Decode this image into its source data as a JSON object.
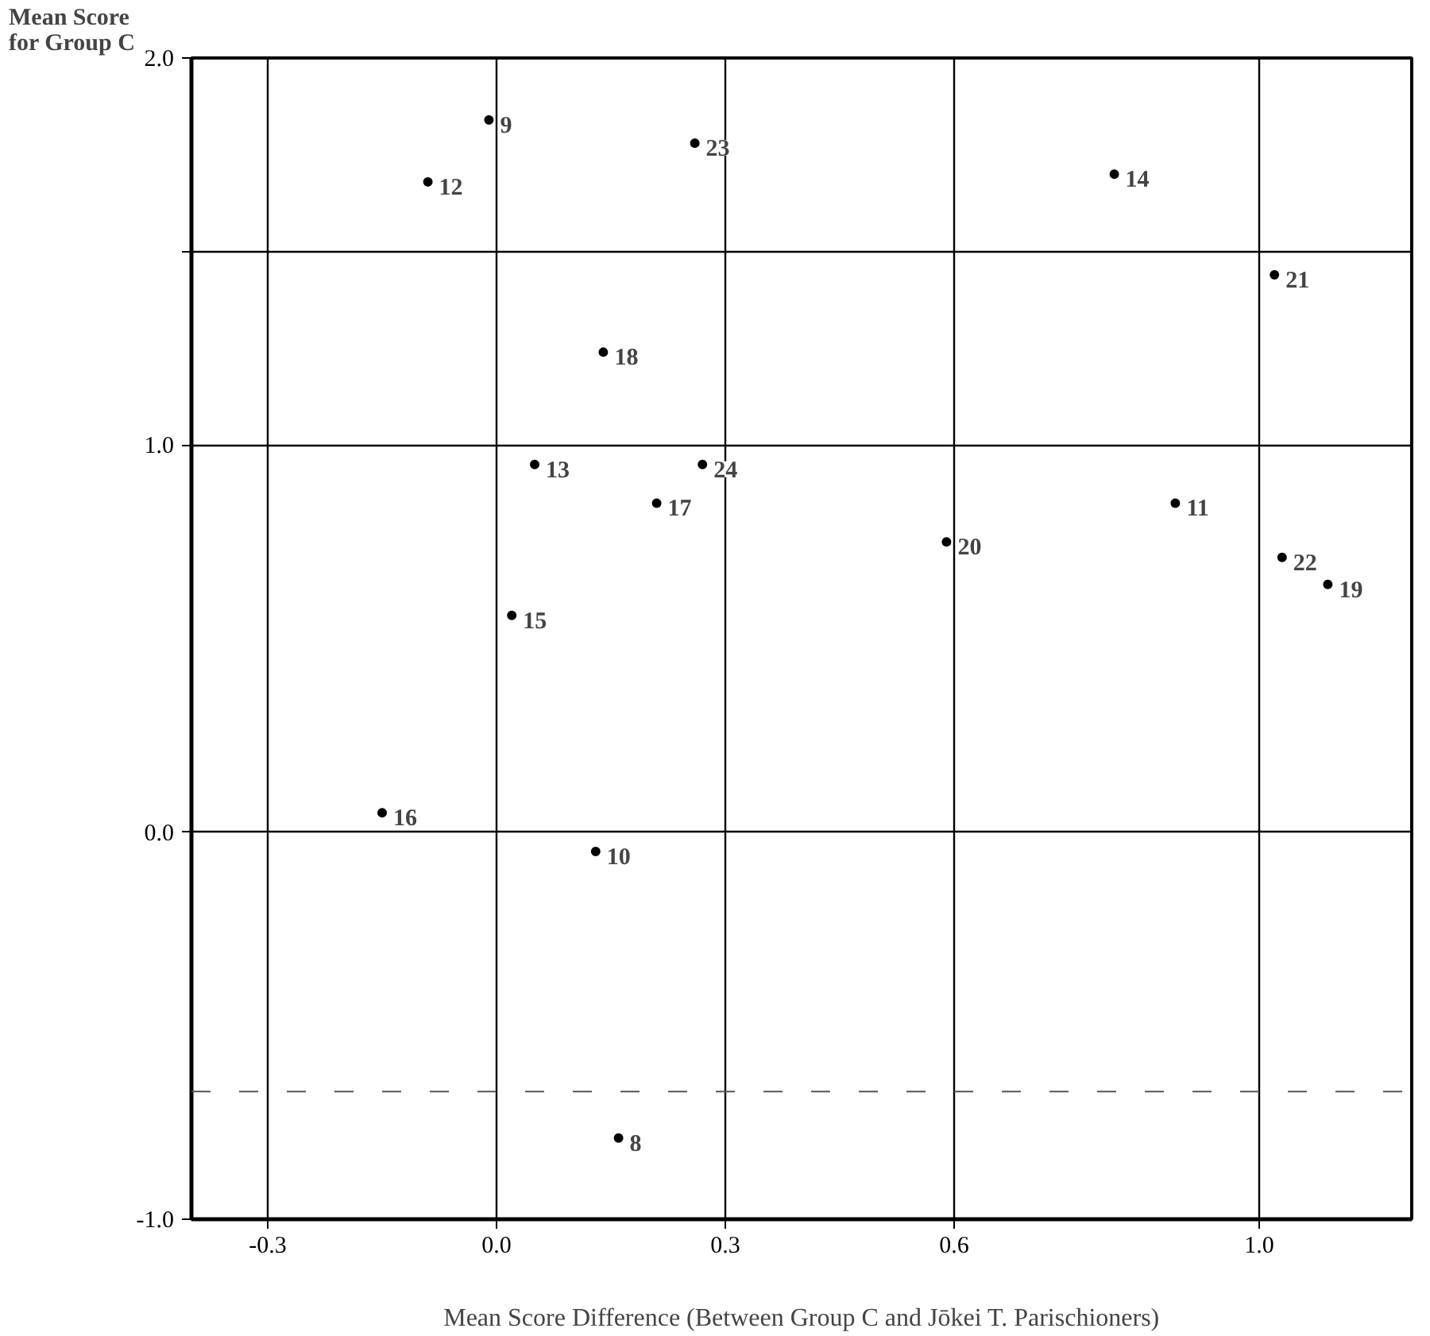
{
  "chart_data": {
    "type": "scatter",
    "ylabel": "Mean Score\nfor Group C",
    "xlabel": "Mean Score Difference (Between Group C and Jōkei T. Parischioners)",
    "series": [
      {
        "color": "#000000",
        "x": [
          -0.01,
          -0.09,
          0.26,
          0.14,
          0.05,
          0.27,
          0.21,
          0.02,
          -0.15,
          0.13,
          0.16,
          0.81,
          1.02,
          0.59,
          0.89,
          1.03,
          1.09
        ],
        "values": [
          1.84,
          1.68,
          1.78,
          1.24,
          0.95,
          0.95,
          0.85,
          0.56,
          0.05,
          -0.05,
          -0.79,
          1.7,
          1.44,
          0.75,
          0.85,
          0.71,
          0.64
        ]
      }
    ],
    "annotations": [
      {
        "text": "9",
        "x": -0.01,
        "y": 1.84
      },
      {
        "text": "12",
        "x": -0.09,
        "y": 1.68
      },
      {
        "text": "23",
        "x": 0.26,
        "y": 1.78
      },
      {
        "text": "18",
        "x": 0.14,
        "y": 1.24
      },
      {
        "text": "13",
        "x": 0.05,
        "y": 0.95
      },
      {
        "text": "24",
        "x": 0.27,
        "y": 0.95
      },
      {
        "text": "17",
        "x": 0.21,
        "y": 0.85
      },
      {
        "text": "15",
        "x": 0.02,
        "y": 0.56
      },
      {
        "text": "16",
        "x": -0.15,
        "y": 0.05
      },
      {
        "text": "10",
        "x": 0.13,
        "y": -0.05
      },
      {
        "text": "8",
        "x": 0.16,
        "y": -0.79
      },
      {
        "text": "14",
        "x": 0.81,
        "y": 1.7
      },
      {
        "text": "21",
        "x": 1.02,
        "y": 1.44
      },
      {
        "text": "20",
        "x": 0.59,
        "y": 0.75
      },
      {
        "text": "11",
        "x": 0.89,
        "y": 0.85
      },
      {
        "text": "22",
        "x": 1.03,
        "y": 0.71
      },
      {
        "text": "19",
        "x": 1.09,
        "y": 0.64
      }
    ],
    "xlim": [
      -0.4,
      1.2
    ],
    "ylim": [
      -1.0,
      2.0
    ],
    "xticks": [
      {
        "value": -0.3,
        "label": "-0.3"
      },
      {
        "value": 0,
        "label": "0.0"
      },
      {
        "value": 0.3,
        "label": "0.3"
      },
      {
        "value": 0.6,
        "label": "0.6"
      },
      {
        "value": 1,
        "label": "1.0"
      }
    ],
    "yticks": [
      {
        "value": -1,
        "label": "-1.0"
      },
      {
        "value": 0,
        "label": "0.0"
      },
      {
        "value": 1,
        "label": "1.0"
      },
      {
        "value": 1.5,
        "label": null
      },
      {
        "value": 2,
        "label": "2.0"
      }
    ],
    "ref_lines": [
      {
        "axis": "y",
        "value": -0.67,
        "line_style": "dashed",
        "color": "#555555"
      }
    ],
    "grid": true,
    "marker": "circle"
  }
}
